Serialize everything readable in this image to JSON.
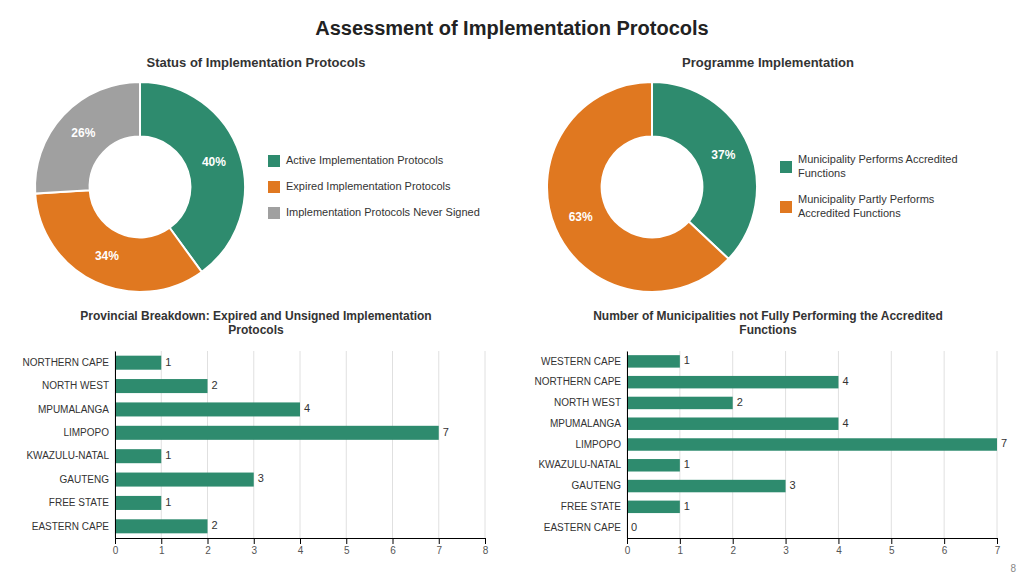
{
  "title": "Assessment of Implementation Protocols",
  "annotations": [
    "8"
  ],
  "chart_data": [
    {
      "type": "pie",
      "title": "Status of Implementation Protocols",
      "categories": [
        "Active Implementation Protocols",
        "Expired Implementation Protocols",
        "Implementation Protocols Never Signed"
      ],
      "values": [
        40,
        34,
        26
      ],
      "value_labels": [
        "40%",
        "34%",
        "26%"
      ],
      "colors": [
        "#2e8b6e",
        "#e07820",
        "#a0a0a0"
      ],
      "data_labels": true,
      "legend": "right"
    },
    {
      "type": "pie",
      "title": "Programme Implementation",
      "categories": [
        "Municipality Performs Accredited\nFunctions",
        "Municipality Partly Performs\nAccredited Functions"
      ],
      "values": [
        37,
        63
      ],
      "value_labels": [
        "37%",
        "63%"
      ],
      "colors": [
        "#2e8b6e",
        "#e07820"
      ],
      "data_labels": true,
      "legend": "right"
    },
    {
      "type": "bar",
      "orientation": "horizontal",
      "title": "Provincial Breakdown: Expired and Unsigned Implementation\nProtocols",
      "categories": [
        "EASTERN CAPE",
        "FREE STATE",
        "GAUTENG",
        "KWAZULU-NATAL",
        "LIMPOPO",
        "MPUMALANGA",
        "NORTH WEST",
        "NORTHERN CAPE"
      ],
      "values": [
        2,
        1,
        3,
        1,
        7,
        4,
        2,
        1
      ],
      "color": "#2e8b6e",
      "xlim": [
        0,
        8
      ],
      "xticks": [
        0,
        1,
        2,
        3,
        4,
        5,
        6,
        7,
        8
      ],
      "grid": true,
      "data_labels": true
    },
    {
      "type": "bar",
      "orientation": "horizontal",
      "title": "Number of Municipalities not Fully Performing the Accredited\nFunctions",
      "categories": [
        "EASTERN CAPE",
        "FREE STATE",
        "GAUTENG",
        "KWAZULU-NATAL",
        "LIMPOPO",
        "MPUMALANGA",
        "NORTH WEST",
        "NORTHERN CAPE",
        "WESTERN CAPE"
      ],
      "values": [
        0,
        1,
        3,
        1,
        7,
        4,
        2,
        4,
        1
      ],
      "color": "#2e8b6e",
      "xlim": [
        0,
        7
      ],
      "xticks": [
        0,
        1,
        2,
        3,
        4,
        5,
        6,
        7
      ],
      "grid": true,
      "data_labels": true
    }
  ]
}
